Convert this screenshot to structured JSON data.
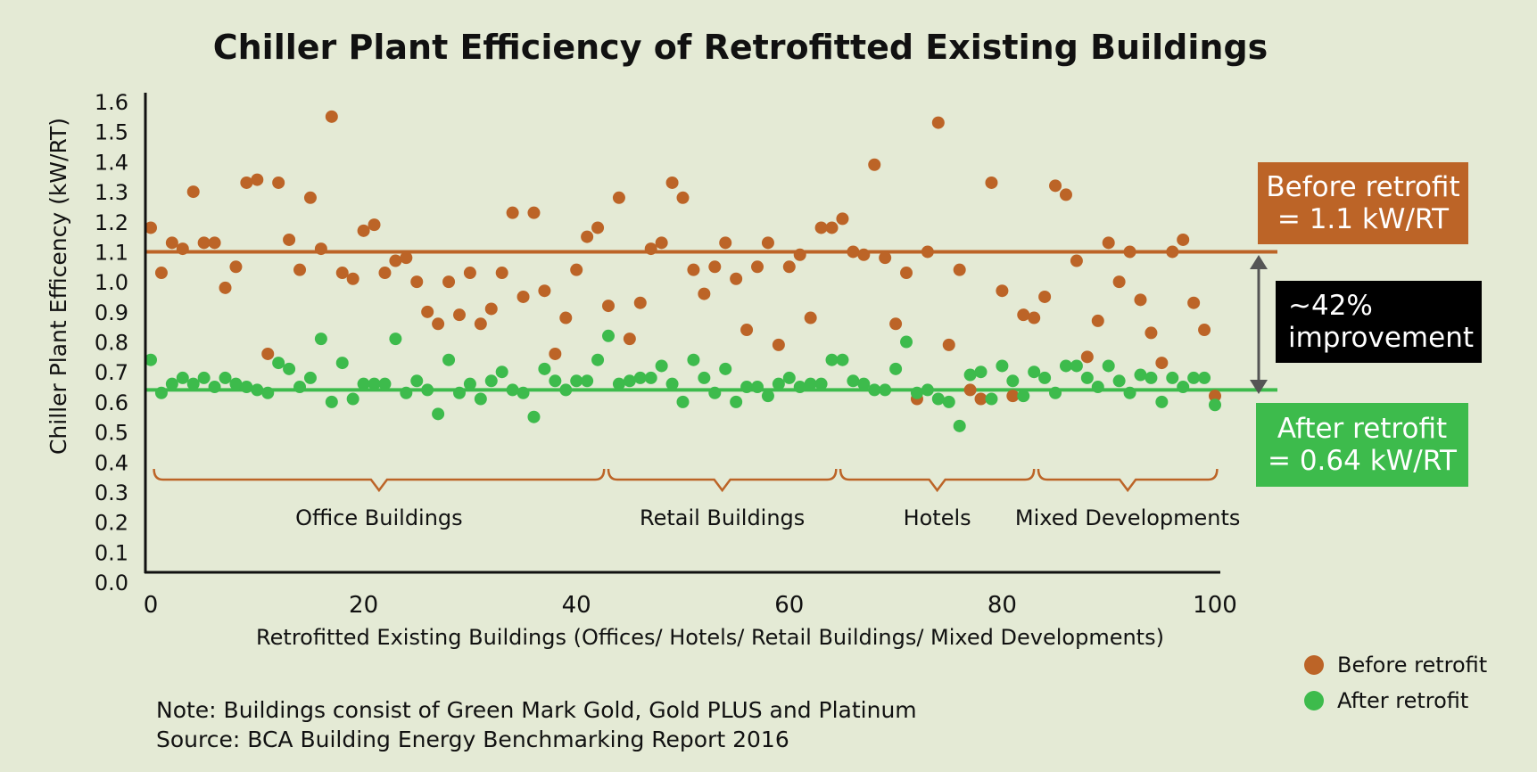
{
  "colors": {
    "before": "#bc6427",
    "after": "#3dbb4c",
    "background": "#e4ead5",
    "axis": "#111111",
    "improvement_box": "#000000"
  },
  "note_line": "Note: Buildings consist of Green Mark Gold, Gold PLUS and Platinum",
  "source_line": "Source: BCA Building Energy Benchmarking Report 2016",
  "callouts": {
    "before": [
      "Before retrofit",
      "= 1.1 kW/RT"
    ],
    "improvement": [
      "~42%",
      "improvement"
    ],
    "after": [
      "After retrofit",
      "= 0.64 kW/RT"
    ]
  },
  "chart_data": {
    "type": "scatter",
    "title": "Chiller Plant Efficiency of Retrofitted Existing Buildings",
    "xlabel": "Retrofitted Existing Buildings (Offices/ Hotels/ Retail Buildings/ Mixed Developments)",
    "ylabel": "Chiller Plant Efficency (kW/RT)",
    "xlim": [
      0,
      100
    ],
    "ylim": [
      0,
      1.6
    ],
    "xticks": [
      0,
      20,
      40,
      60,
      80,
      100
    ],
    "yticks": [
      0.0,
      0.1,
      0.2,
      0.3,
      0.4,
      0.5,
      0.6,
      0.7,
      0.8,
      0.9,
      1.0,
      1.1,
      1.2,
      1.3,
      1.4,
      1.5,
      1.6
    ],
    "grid": false,
    "legend_position": "bottom-right",
    "reference_lines": [
      {
        "series": "Before retrofit",
        "y": 1.1
      },
      {
        "series": "After retrofit",
        "y": 0.64
      }
    ],
    "groups": [
      {
        "label": "Office Buildings",
        "x_start": 0.3,
        "x_end": 42.6
      },
      {
        "label": "Retail Buildings",
        "x_start": 43.0,
        "x_end": 64.4
      },
      {
        "label": "Hotels",
        "x_start": 64.8,
        "x_end": 83.0
      },
      {
        "label": "Mixed Developments",
        "x_start": 83.4,
        "x_end": 100.2
      }
    ],
    "series": [
      {
        "name": "Before retrofit",
        "x": [
          0,
          1,
          2,
          3,
          4,
          5,
          6,
          7,
          8,
          9,
          10,
          11,
          12,
          13,
          14,
          15,
          16,
          17,
          18,
          19,
          20,
          21,
          22,
          23,
          24,
          25,
          26,
          27,
          28,
          29,
          30,
          31,
          32,
          33,
          34,
          35,
          36,
          37,
          38,
          39,
          40,
          41,
          42,
          43,
          44,
          45,
          46,
          47,
          48,
          49,
          50,
          51,
          52,
          53,
          54,
          55,
          56,
          57,
          58,
          59,
          60,
          61,
          62,
          63,
          64,
          65,
          66,
          67,
          68,
          69,
          70,
          71,
          72,
          73,
          74,
          75,
          76,
          77,
          78,
          79,
          80,
          81,
          82,
          83,
          84,
          85,
          86,
          87,
          88,
          89,
          90,
          91,
          92,
          93,
          94,
          95,
          96,
          97,
          98,
          99,
          100
        ],
        "y": [
          1.18,
          1.03,
          1.13,
          1.11,
          1.3,
          1.13,
          1.13,
          0.98,
          1.05,
          1.33,
          1.34,
          0.76,
          1.33,
          1.14,
          1.04,
          1.28,
          1.11,
          1.55,
          1.03,
          1.01,
          1.17,
          1.19,
          1.03,
          1.07,
          1.08,
          1.0,
          0.9,
          0.86,
          1.0,
          0.89,
          1.03,
          0.86,
          0.91,
          1.03,
          1.23,
          0.95,
          1.23,
          0.97,
          0.76,
          0.88,
          1.04,
          1.15,
          1.18,
          0.92,
          1.28,
          0.81,
          0.93,
          1.11,
          1.13,
          1.33,
          1.28,
          1.04,
          0.96,
          1.05,
          1.13,
          1.01,
          0.84,
          1.05,
          1.13,
          0.79,
          1.05,
          1.09,
          0.88,
          1.18,
          1.18,
          1.21,
          1.1,
          1.09,
          1.39,
          1.08,
          0.86,
          1.03,
          0.61,
          1.1,
          1.53,
          0.79,
          1.04,
          0.64,
          0.61,
          1.33,
          0.97,
          0.62,
          0.89,
          0.88,
          0.95,
          1.32,
          1.29,
          1.07,
          0.75,
          0.87,
          1.13,
          1.0,
          1.1,
          0.94,
          0.83,
          0.73,
          1.1,
          1.14,
          0.93,
          0.84,
          0.62
        ]
      },
      {
        "name": "After retrofit",
        "x": [
          0,
          1,
          2,
          3,
          4,
          5,
          6,
          7,
          8,
          9,
          10,
          11,
          12,
          13,
          14,
          15,
          16,
          17,
          18,
          19,
          20,
          21,
          22,
          23,
          24,
          25,
          26,
          27,
          28,
          29,
          30,
          31,
          32,
          33,
          34,
          35,
          36,
          37,
          38,
          39,
          40,
          41,
          42,
          43,
          44,
          45,
          46,
          47,
          48,
          49,
          50,
          51,
          52,
          53,
          54,
          55,
          56,
          57,
          58,
          59,
          60,
          61,
          62,
          63,
          64,
          65,
          66,
          67,
          68,
          69,
          70,
          71,
          72,
          73,
          74,
          75,
          76,
          77,
          78,
          79,
          80,
          81,
          82,
          83,
          84,
          85,
          86,
          87,
          88,
          89,
          90,
          91,
          92,
          93,
          94,
          95,
          96,
          97,
          98,
          99,
          100
        ],
        "y": [
          0.74,
          0.63,
          0.66,
          0.68,
          0.66,
          0.68,
          0.65,
          0.68,
          0.66,
          0.65,
          0.64,
          0.63,
          0.73,
          0.71,
          0.65,
          0.68,
          0.81,
          0.6,
          0.73,
          0.61,
          0.66,
          0.66,
          0.66,
          0.81,
          0.63,
          0.67,
          0.64,
          0.56,
          0.74,
          0.63,
          0.66,
          0.61,
          0.67,
          0.7,
          0.64,
          0.63,
          0.55,
          0.71,
          0.67,
          0.64,
          0.67,
          0.67,
          0.74,
          0.82,
          0.66,
          0.67,
          0.68,
          0.68,
          0.72,
          0.66,
          0.6,
          0.74,
          0.68,
          0.63,
          0.71,
          0.6,
          0.65,
          0.65,
          0.62,
          0.66,
          0.68,
          0.65,
          0.66,
          0.66,
          0.74,
          0.74,
          0.67,
          0.66,
          0.64,
          0.64,
          0.71,
          0.8,
          0.63,
          0.64,
          0.61,
          0.6,
          0.52,
          0.69,
          0.7,
          0.61,
          0.72,
          0.67,
          0.62,
          0.7,
          0.68,
          0.63,
          0.72,
          0.72,
          0.68,
          0.65,
          0.72,
          0.67,
          0.63,
          0.69,
          0.68,
          0.6,
          0.68,
          0.65,
          0.68,
          0.68,
          0.59
        ]
      }
    ]
  }
}
